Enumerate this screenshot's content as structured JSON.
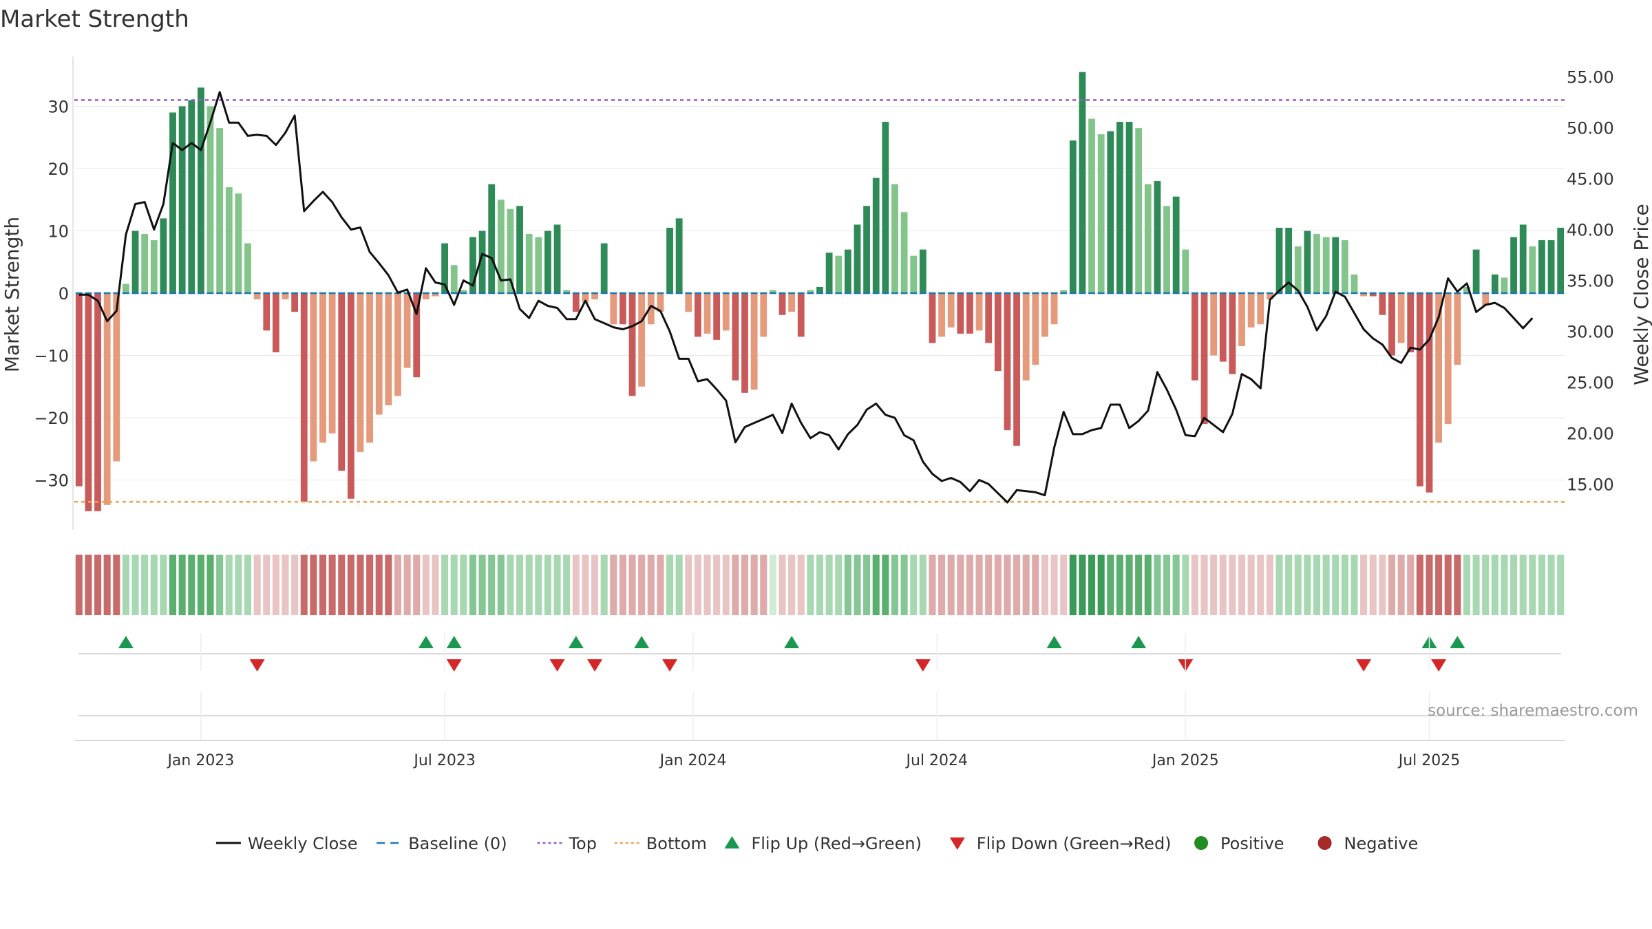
{
  "title": "Market Strength",
  "source_text": "source: sharemaestro.com",
  "colors": {
    "green_dark": "#2e8b57",
    "green_light": "#83c48b",
    "red_dark": "#c95a5a",
    "red_light": "#e59a7c",
    "price_line": "#111111",
    "baseline": "#1f77b4",
    "top_line": "#9b59d0",
    "bottom_line": "#f0a050",
    "flip_up": "#1a9850",
    "flip_down": "#d62728",
    "positive": "#228b22",
    "negative": "#a52a2a"
  },
  "chart_data": {
    "type": "bar",
    "title": "Market Strength",
    "ylabel": "Market Strength",
    "y2label": "Weekly Close Price",
    "ylim": [
      -38,
      38
    ],
    "y2lim": [
      10.5,
      57.0
    ],
    "yticks": [
      -30,
      -20,
      -10,
      0,
      10,
      20,
      30
    ],
    "yticklabels": [
      "−30",
      "−20",
      "−10",
      "0",
      "10",
      "20",
      "30"
    ],
    "y2ticks": [
      15,
      20,
      25,
      30,
      35,
      40,
      45,
      50,
      55
    ],
    "y2ticklabels": [
      "15.00",
      "20.00",
      "25.00",
      "30.00",
      "35.00",
      "40.00",
      "45.00",
      "50.00",
      "55.00"
    ],
    "top_level": 31,
    "bottom_level": -33.5,
    "baseline": 0,
    "x_ticks": [
      {
        "label": "Jan 2023",
        "week": 13
      },
      {
        "label": "Jul 2023",
        "week": 39
      },
      {
        "label": "Jan 2024",
        "week": 65.5
      },
      {
        "label": "Jul 2024",
        "week": 91.5
      },
      {
        "label": "Jan 2025",
        "week": 118
      },
      {
        "label": "Jul 2025",
        "week": 144
      }
    ],
    "series": [
      {
        "name": "Market Strength",
        "type": "bar",
        "values": [
          -31,
          -35,
          -35,
          -34,
          -27,
          1.5,
          10,
          9.5,
          8.5,
          12,
          29,
          30,
          31,
          33,
          30,
          26.5,
          17,
          16,
          8,
          -1,
          -6,
          -9.5,
          -1,
          -3,
          -33.5,
          -27,
          -24,
          -22.5,
          -28.5,
          -33,
          -25.5,
          -24,
          -19.5,
          -18,
          -16.5,
          -12,
          -13.5,
          -1,
          -0.5,
          8,
          4.5,
          0.5,
          9,
          10,
          17.5,
          15,
          13.5,
          14,
          9.5,
          9,
          10,
          11,
          0.5,
          -3,
          -1.5,
          -1,
          8,
          -5,
          -5,
          -16.5,
          -15,
          -5,
          -3,
          10.5,
          12,
          -3,
          -7,
          -6.5,
          -7.5,
          -6,
          -14,
          -16,
          -15.5,
          -7,
          0.5,
          -3.5,
          -3,
          -7,
          0.5,
          1,
          6.5,
          6,
          7,
          11,
          14,
          18.5,
          27.5,
          17.5,
          13,
          6,
          7,
          -8,
          -7,
          -5.5,
          -6.5,
          -6.5,
          -6,
          -8,
          -12.5,
          -22,
          -24.5,
          -14,
          -11.5,
          -7,
          -5,
          0.5,
          24.5,
          35.5,
          28,
          25.5,
          26,
          27.5,
          27.5,
          26.5,
          17.5,
          18,
          14,
          15.5,
          7,
          -14,
          -21,
          -10,
          -11,
          -13,
          -8.5,
          -5.5,
          -5,
          -1,
          10.5,
          10.5,
          7.5,
          10,
          9.5,
          9,
          9,
          8.5,
          3,
          -0.5,
          -0.5,
          -3.5,
          -10,
          -8,
          -9.5,
          -31,
          -32,
          -24,
          -21,
          -11.5,
          1,
          7,
          -2,
          3,
          2.5,
          9,
          11,
          7.5,
          8.5,
          8.5,
          10.5
        ]
      },
      {
        "name": "Weekly Close",
        "type": "line",
        "values": [
          33.6,
          33.6,
          33,
          31,
          32,
          39.5,
          42.5,
          42.7,
          40,
          42.5,
          48.5,
          47.8,
          48.5,
          47.8,
          50.5,
          53.5,
          50.5,
          50.5,
          49.2,
          49.3,
          49.2,
          48.3,
          49.5,
          51.2,
          41.8,
          42.8,
          43.7,
          42.7,
          41.2,
          40,
          40.2,
          37.8,
          36.7,
          35.5,
          33.8,
          34.1,
          31.7,
          36.2,
          34.8,
          34.6,
          32.6,
          35,
          34.5,
          37.6,
          37.2,
          35,
          35.1,
          32.2,
          31.3,
          33,
          32.5,
          32.3,
          31.2,
          31.2,
          33,
          31.2,
          30.8,
          30.4,
          30.2,
          30.5,
          31,
          32.5,
          32,
          30,
          27.3,
          27.3,
          25.1,
          25.3,
          24.3,
          23.2,
          19.1,
          20.6,
          21,
          21.4,
          21.8,
          20,
          22.9,
          21,
          19.5,
          20.1,
          19.8,
          18.4,
          19.9,
          20.8,
          22.3,
          22.9,
          21.8,
          21.5,
          19.8,
          19.3,
          17.2,
          16,
          15.3,
          15.6,
          15.2,
          14.3,
          15.4,
          15,
          14.1,
          13.2,
          14.4,
          14.3,
          14.2,
          13.9,
          18.6,
          22.1,
          19.9,
          19.9,
          20.3,
          20.5,
          22.8,
          22.8,
          20.5,
          21.2,
          22.2,
          26,
          24.3,
          22.3,
          19.8,
          19.7,
          21.5,
          20.8,
          20.1,
          21.9,
          25.8,
          25.3,
          24.4,
          33.1,
          34,
          34.8,
          34,
          32.4,
          30.1,
          31.5,
          33.9,
          33.4,
          31.8,
          30.2,
          29.3,
          28.7,
          27.4,
          26.9,
          28.4,
          28.2,
          29.2,
          31.4,
          35.2,
          33.9,
          34.7,
          31.9,
          32.6,
          32.8,
          32.3,
          31.3,
          30.3,
          31.3
        ]
      }
    ],
    "state_strip": {
      "name": "Strength State",
      "levels": [
        -3,
        -3,
        -3,
        -3,
        -3,
        1,
        1,
        1,
        1,
        1,
        3,
        3,
        3,
        3,
        3,
        2,
        1,
        1,
        1,
        -1,
        -1,
        -1,
        -1,
        -1,
        -3,
        -3,
        -3,
        -3,
        -3,
        -3,
        -3,
        -3,
        -3,
        -3,
        -2,
        -2,
        -2,
        -1,
        -1,
        1,
        1,
        1,
        2,
        2,
        2,
        2,
        1,
        1,
        1,
        1,
        1,
        1,
        1,
        -1,
        -1,
        -1,
        1,
        -2,
        -2,
        -2,
        -2,
        -2,
        -2,
        1,
        1,
        -1,
        -1,
        -1,
        -1,
        -1,
        -2,
        -2,
        -2,
        -2,
        0,
        -1,
        -1,
        -1,
        1,
        1,
        1,
        1,
        2,
        2,
        2,
        3,
        3,
        2,
        2,
        1,
        1,
        -2,
        -2,
        -2,
        -2,
        -2,
        -2,
        -2,
        -2,
        -2,
        -2,
        -2,
        -2,
        -1,
        -1,
        -1,
        4,
        4,
        4,
        4,
        3,
        3,
        3,
        3,
        3,
        2,
        2,
        2,
        1,
        -1,
        -1,
        -1,
        -1,
        -1,
        -1,
        -1,
        -1,
        -1,
        1,
        1,
        1,
        1,
        1,
        1,
        1,
        1,
        1,
        -1,
        -1,
        -1,
        -2,
        -2,
        -2,
        -3,
        -3,
        -3,
        -3,
        -3,
        1,
        1,
        1,
        1,
        1,
        1,
        1,
        1,
        1,
        1,
        1
      ]
    },
    "flip_up_weeks": [
      5,
      37,
      40,
      53,
      60,
      76,
      104,
      113,
      144,
      147
    ],
    "flip_down_weeks": [
      19,
      40,
      51,
      55,
      63,
      90,
      118,
      137,
      145
    ],
    "legend": [
      {
        "label": "Weekly Close",
        "marker": "line",
        "color": "#111111"
      },
      {
        "label": "Baseline (0)",
        "marker": "dash",
        "color": "#1f77b4"
      },
      {
        "label": "Top",
        "marker": "dot",
        "color": "#9b59d0"
      },
      {
        "label": "Bottom",
        "marker": "dot",
        "color": "#f0a050"
      },
      {
        "label": "Flip Up (Red→Green)",
        "marker": "triangle-up",
        "color": "#1a9850"
      },
      {
        "label": "Flip Down (Green→Red)",
        "marker": "triangle-down",
        "color": "#d62728"
      },
      {
        "label": "Positive",
        "marker": "circle",
        "color": "#228b22"
      },
      {
        "label": "Negative",
        "marker": "circle",
        "color": "#a52a2a"
      }
    ],
    "legend_position": "bottom"
  }
}
